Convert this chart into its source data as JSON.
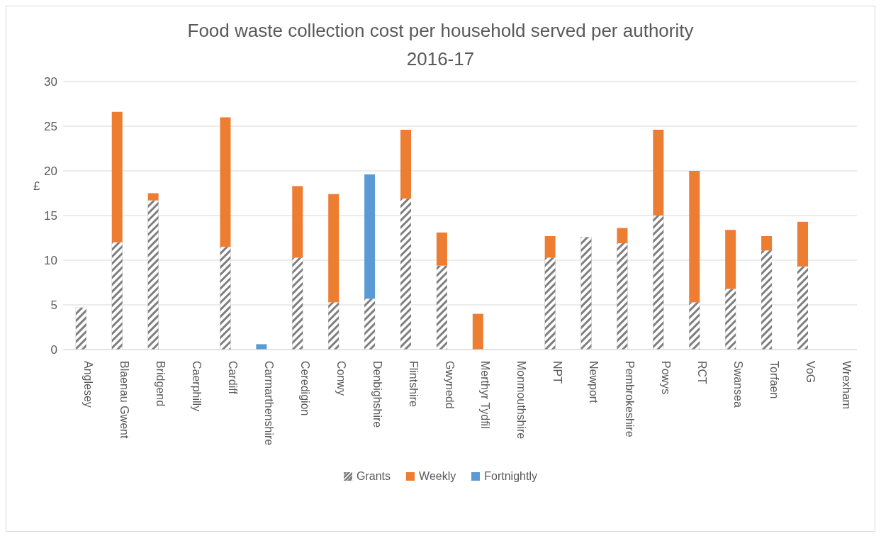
{
  "chart_data": {
    "type": "bar",
    "title": "Food waste collection cost per household served per authority 2016-17",
    "ylabel": "£",
    "categories": [
      "Anglesey",
      "Blaenau Gwent",
      "Bridgend",
      "Caerphilly",
      "Cardiff",
      "Carmarthenshire",
      "Ceredigion",
      "Conwy",
      "Denbighshire",
      "Flintshire",
      "Gwynedd",
      "Merthyr Tydfil",
      "Monmouthshire",
      "NPT",
      "Newport",
      "Pembrokeshire",
      "Powys",
      "RCT",
      "Swansea",
      "Torfaen",
      "VoG",
      "Wrexham"
    ],
    "series": [
      {
        "name": "Grants",
        "color": "#7f7f7f",
        "values": [
          4.7,
          12.0,
          16.7,
          null,
          11.5,
          null,
          10.3,
          5.3,
          5.7,
          16.9,
          9.4,
          null,
          null,
          10.3,
          12.6,
          11.9,
          15.0,
          5.3,
          6.8,
          11.1,
          9.3,
          null
        ]
      },
      {
        "name": "Weekly",
        "color": "#ed7d31",
        "values": [
          null,
          14.6,
          0.8,
          null,
          14.5,
          null,
          8.0,
          12.1,
          null,
          7.7,
          3.7,
          4.0,
          null,
          2.4,
          null,
          1.7,
          9.6,
          14.7,
          6.6,
          1.6,
          5.0,
          null
        ]
      },
      {
        "name": "Fortnightly",
        "color": "#5b9bd5",
        "values": [
          null,
          null,
          null,
          null,
          null,
          0.6,
          null,
          null,
          13.9,
          null,
          null,
          null,
          null,
          null,
          null,
          null,
          null,
          null,
          null,
          null,
          null,
          null
        ]
      }
    ],
    "stacked": true,
    "ylim": [
      0,
      30
    ],
    "yticks": [
      0,
      5,
      10,
      15,
      20,
      25,
      30
    ],
    "grid": "y",
    "legend": "bottom"
  }
}
